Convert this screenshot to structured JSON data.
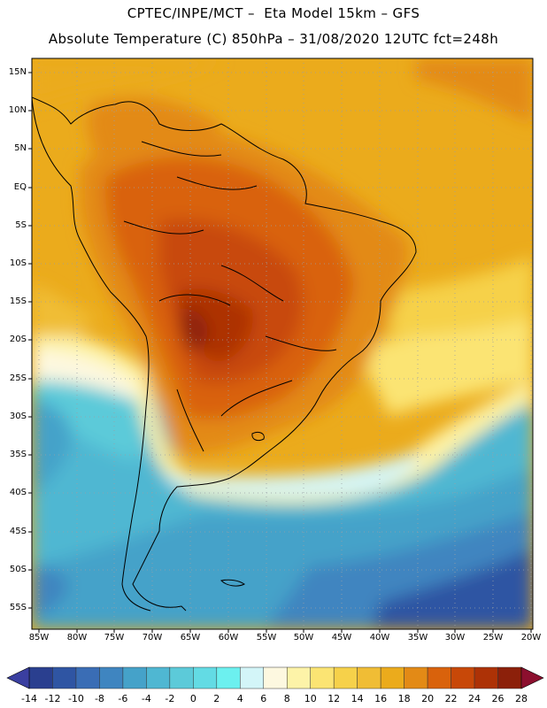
{
  "header": {
    "line1": "CPTEC/INPE/MCT –  Eta Model 15km – GFS",
    "line2": "Absolute Temperature (C) 850hPa – 31/08/2020 12UTC fct=248h"
  },
  "map": {
    "variable": "Absolute Temperature",
    "units": "C",
    "level": "850hPa",
    "region": "South America",
    "lat_labels": [
      "15N",
      "10N",
      "5N",
      "EQ",
      "5S",
      "10S",
      "15S",
      "20S",
      "25S",
      "30S",
      "35S",
      "40S",
      "45S",
      "50S",
      "55S"
    ],
    "lon_labels": [
      "85W",
      "80W",
      "75W",
      "70W",
      "65W",
      "60W",
      "55W",
      "50W",
      "45W",
      "40W",
      "35W",
      "30W",
      "25W",
      "20W"
    ],
    "lat_range": [
      -58,
      16
    ],
    "lon_range": [
      -86,
      -20
    ]
  },
  "colorbar": {
    "labels": [
      "-14",
      "-12",
      "-10",
      "-8",
      "-6",
      "-4",
      "-2",
      "0",
      "2",
      "4",
      "6",
      "8",
      "10",
      "12",
      "14",
      "16",
      "18",
      "20",
      "22",
      "24",
      "26",
      "28"
    ],
    "colors": [
      "#2a3f8f",
      "#2f55a3",
      "#3a6db5",
      "#3f85c0",
      "#45a2c9",
      "#4fb7d2",
      "#5ccad9",
      "#63dbe4",
      "#6cf0ef",
      "#d3f5f8",
      "#fdf8e0",
      "#fdf3a8",
      "#fbe473",
      "#f6d14a",
      "#f0bd35",
      "#ebab1c",
      "#e38a16",
      "#d9620c",
      "#c84808",
      "#ad3206",
      "#8c200a"
    ]
  }
}
